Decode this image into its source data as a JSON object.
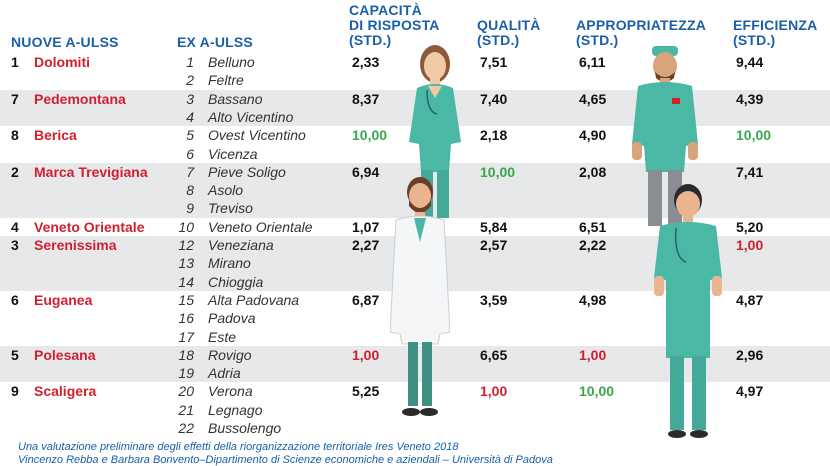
{
  "headers": {
    "nuove": "NUOVE A-ULSS",
    "ex": "EX A-ULSS",
    "capacita": "CAPACITÀ\nDI RISPOSTA\n(STD.)",
    "qualita": "QUALITÀ\n(STD.)",
    "appropriatezza": "APPROPRIATEZZA\n(STD.)",
    "efficienza": "EFFICIENZA\n(STD.)"
  },
  "groups": [
    {
      "num": "1",
      "name": "Dolomiti",
      "capacita": "2,33",
      "qualita": "7,51",
      "appropriatezza": "6,11",
      "efficienza": "9,44",
      "ex": [
        {
          "n": "1",
          "name": "Belluno"
        },
        {
          "n": "2",
          "name": "Feltre"
        }
      ]
    },
    {
      "num": "7",
      "name": "Pedemontana",
      "capacita": "8,37",
      "qualita": "7,40",
      "appropriatezza": "4,65",
      "efficienza": "4,39",
      "ex": [
        {
          "n": "3",
          "name": "Bassano"
        },
        {
          "n": "4",
          "name": "Alto Vicentino"
        }
      ]
    },
    {
      "num": "8",
      "name": "Berica",
      "capacita": "10,00",
      "qualita": "2,18",
      "appropriatezza": "4,90",
      "efficienza": "10,00",
      "ex": [
        {
          "n": "5",
          "name": "Ovest Vicentino"
        },
        {
          "n": "6",
          "name": "Vicenza"
        }
      ]
    },
    {
      "num": "2",
      "name": "Marca Trevigiana",
      "capacita": "6,94",
      "qualita": "10,00",
      "appropriatezza": "2,08",
      "efficienza": "7,41",
      "ex": [
        {
          "n": "7",
          "name": "Pieve Soligo"
        },
        {
          "n": "8",
          "name": "Asolo"
        },
        {
          "n": "9",
          "name": "Treviso"
        }
      ]
    },
    {
      "num": "4",
      "name": "Veneto Orientale",
      "capacita": "1,07",
      "qualita": "5,84",
      "appropriatezza": "6,51",
      "efficienza": "5,20",
      "ex": [
        {
          "n": "10",
          "name": "Veneto Orientale"
        }
      ]
    },
    {
      "num": "3",
      "name": "Serenissima",
      "capacita": "2,27",
      "qualita": "2,57",
      "appropriatezza": "2,22",
      "efficienza": "1,00",
      "ex": [
        {
          "n": "12",
          "name": "Veneziana"
        },
        {
          "n": "13",
          "name": "Mirano"
        },
        {
          "n": "14",
          "name": "Chioggia"
        }
      ]
    },
    {
      "num": "6",
      "name": "Euganea",
      "capacita": "6,87",
      "qualita": "3,59",
      "appropriatezza": "4,98",
      "efficienza": "4,87",
      "ex": [
        {
          "n": "15",
          "name": "Alta Padovana"
        },
        {
          "n": "16",
          "name": "Padova"
        },
        {
          "n": "17",
          "name": "Este"
        }
      ]
    },
    {
      "num": "5",
      "name": "Polesana",
      "capacita": "1,00",
      "qualita": "6,65",
      "appropriatezza": "1,00",
      "efficienza": "2,96",
      "ex": [
        {
          "n": "18",
          "name": "Rovigo"
        },
        {
          "n": "19",
          "name": "Adria"
        }
      ]
    },
    {
      "num": "9",
      "name": "Scaligera",
      "capacita": "5,25",
      "qualita": "1,00",
      "appropriatezza": "10,00",
      "efficienza": "4,97",
      "ex": [
        {
          "n": "20",
          "name": "Verona"
        },
        {
          "n": "21",
          "name": "Legnago"
        },
        {
          "n": "22",
          "name": "Bussolengo"
        }
      ]
    }
  ],
  "value_colors": {
    "max": "#3aa64a",
    "min": "#d0202e",
    "normal": "#111111"
  },
  "footnote": {
    "line1": "Una valutazione preliminare degli effetti della riorganizzazione territoriale Ires Veneto 2018",
    "line2": "Vincenzo Rebba e Barbara Bonvento–Dipartimento di Scienze economiche e aziendali – Università di Padova"
  },
  "illustrations": [
    "female-nurse-illustration",
    "male-surgeon-illustration",
    "doctor-white-coat-illustration",
    "male-nurse-illustration"
  ]
}
